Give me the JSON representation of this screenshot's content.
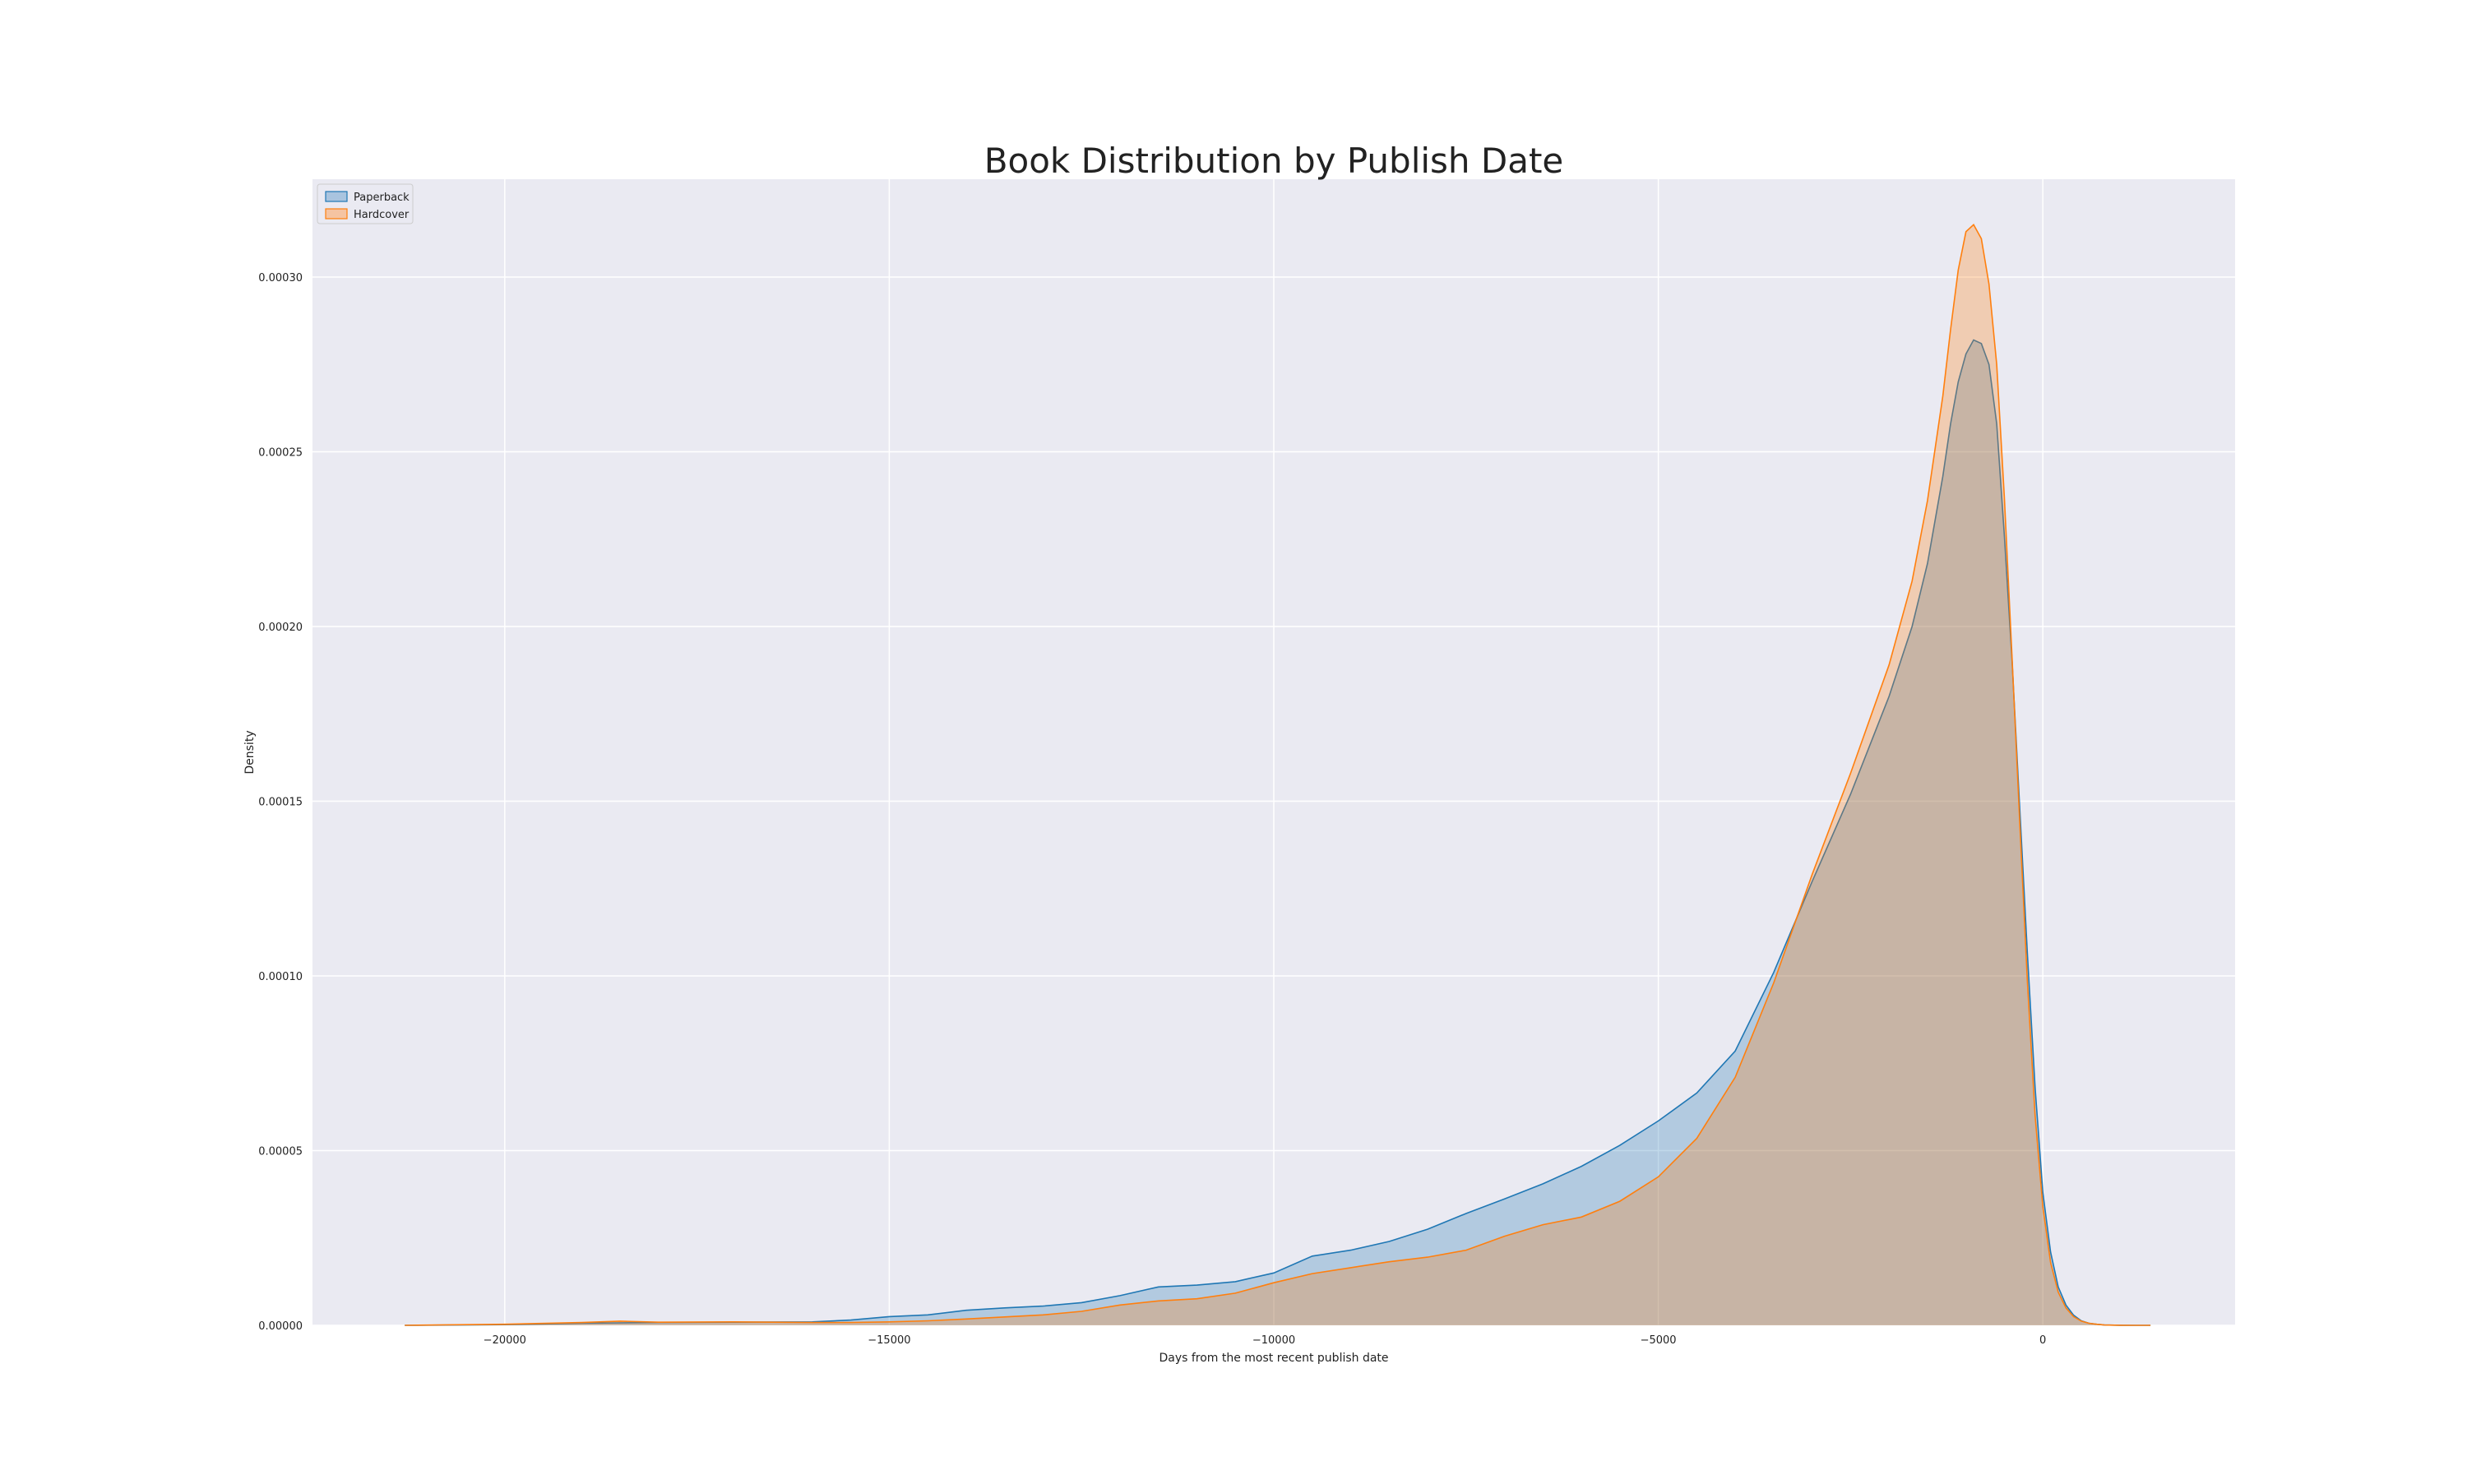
{
  "chart_data": {
    "type": "area",
    "title": "Book Distribution by Publish Date",
    "xlabel": "Days from the most recent publish date",
    "ylabel": "Density",
    "xlim": [
      -22500,
      2500
    ],
    "ylim": [
      0,
      0.000328
    ],
    "xticks": [
      -20000,
      -15000,
      -10000,
      -5000,
      0
    ],
    "xtick_labels": [
      "−20000",
      "−15000",
      "−10000",
      "−5000",
      "0"
    ],
    "yticks": [
      0,
      5e-05,
      0.0001,
      0.00015,
      0.0002,
      0.00025,
      0.0003
    ],
    "ytick_labels": [
      "0.00000",
      "0.00005",
      "0.00010",
      "0.00015",
      "0.00020",
      "0.00025",
      "0.00030"
    ],
    "grid": true,
    "legend_position": "top-left",
    "series": [
      {
        "name": "Paperback",
        "color": "#1f77b4",
        "fill": "#a9c4df",
        "x": [
          -21300,
          -20000,
          -19000,
          -18000,
          -17000,
          -16000,
          -15500,
          -15000,
          -14500,
          -14000,
          -13500,
          -13000,
          -12500,
          -12000,
          -11500,
          -11000,
          -10500,
          -10000,
          -9500,
          -9000,
          -8500,
          -8000,
          -7500,
          -7000,
          -6500,
          -6000,
          -5500,
          -5000,
          -4500,
          -4000,
          -3500,
          -3000,
          -2500,
          -2000,
          -1700,
          -1500,
          -1300,
          -1200,
          -1100,
          -1000,
          -900,
          -800,
          -700,
          -600,
          -500,
          -400,
          -300,
          -200,
          -100,
          0,
          100,
          200,
          300,
          400,
          500,
          600,
          700,
          800,
          1000,
          1200,
          1400
        ],
        "y": [
          0,
          2e-07,
          6e-07,
          8e-07,
          9e-07,
          1e-06,
          1.5e-06,
          2.5e-06,
          3e-06,
          4.3e-06,
          5e-06,
          5.5e-06,
          6.5e-06,
          8.5e-06,
          1.1e-05,
          1.15e-05,
          1.25e-05,
          1.5e-05,
          1.98e-05,
          2.15e-05,
          2.4e-05,
          2.75e-05,
          3.2e-05,
          3.62e-05,
          4.05e-05,
          4.55e-05,
          5.15e-05,
          5.85e-05,
          6.65e-05,
          7.85e-05,
          0.000101,
          0.000127,
          0.000152,
          0.00018,
          0.0002,
          0.000218,
          0.000243,
          0.000258,
          0.00027,
          0.000278,
          0.000282,
          0.000281,
          0.000275,
          0.000258,
          0.000226,
          0.00019,
          0.000148,
          0.000106,
          6.8e-05,
          3.8e-05,
          2.1e-05,
          1.1e-05,
          5.8e-06,
          2.9e-06,
          1.3e-06,
          6e-07,
          3e-07,
          1e-07,
          3e-08,
          1e-08,
          0
        ]
      },
      {
        "name": "Hardcover",
        "color": "#ff7f0e",
        "fill": "#f5c4a2",
        "x": [
          -21300,
          -20000,
          -19000,
          -18500,
          -18000,
          -17000,
          -16000,
          -15500,
          -15000,
          -14500,
          -14000,
          -13500,
          -13000,
          -12500,
          -12000,
          -11500,
          -11000,
          -10500,
          -10000,
          -9500,
          -9000,
          -8500,
          -8000,
          -7500,
          -7000,
          -6500,
          -6000,
          -5500,
          -5000,
          -4500,
          -4000,
          -3500,
          -3000,
          -2500,
          -2000,
          -1700,
          -1500,
          -1300,
          -1200,
          -1100,
          -1000,
          -900,
          -800,
          -700,
          -600,
          -500,
          -400,
          -300,
          -200,
          -100,
          0,
          100,
          200,
          300,
          400,
          500,
          600,
          700,
          800,
          1000,
          1200,
          1400
        ],
        "y": [
          0,
          3e-07,
          8e-07,
          1.2e-06,
          9e-07,
          1e-06,
          8e-07,
          8e-07,
          1e-06,
          1.3e-06,
          1.8e-06,
          2.4e-06,
          3e-06,
          4e-06,
          5.8e-06,
          7e-06,
          7.6e-06,
          9.2e-06,
          1.22e-05,
          1.48e-05,
          1.65e-05,
          1.82e-05,
          1.95e-05,
          2.15e-05,
          2.55e-05,
          2.88e-05,
          3.1e-05,
          3.55e-05,
          4.25e-05,
          5.35e-05,
          7.1e-05,
          9.8e-05,
          0.000129,
          0.000158,
          0.000189,
          0.000213,
          0.000236,
          0.000266,
          0.000285,
          0.000302,
          0.000313,
          0.000315,
          0.000311,
          0.000298,
          0.000275,
          0.000237,
          0.000191,
          0.000144,
          9.8e-05,
          6e-05,
          3.4e-05,
          1.8e-05,
          9.5e-06,
          5e-06,
          2.5e-06,
          1.2e-06,
          6e-07,
          3e-07,
          1e-07,
          3e-08,
          1e-08,
          0
        ]
      }
    ]
  }
}
